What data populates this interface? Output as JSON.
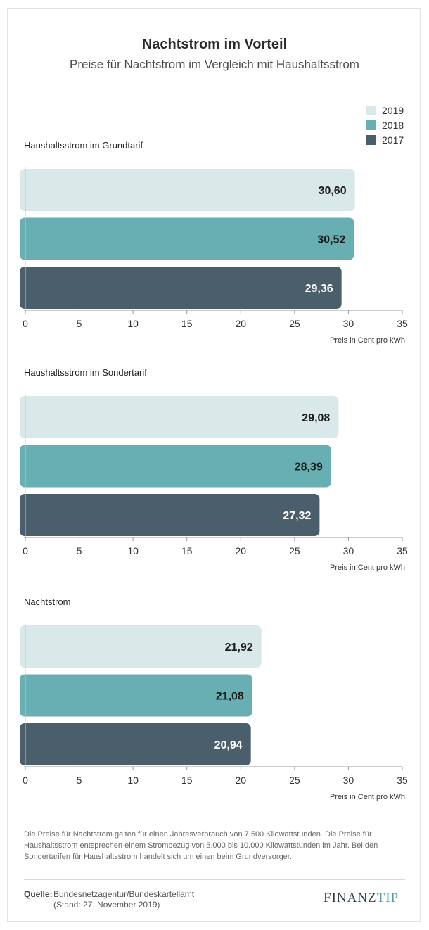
{
  "title": "Nachtstrom im Vorteil",
  "subtitle": "Preise für Nachtstrom im Vergleich mit Haushaltsstrom",
  "legend": [
    {
      "label": "2019",
      "color": "#d9e8e9"
    },
    {
      "label": "2018",
      "color": "#67afb3"
    },
    {
      "label": "2017",
      "color": "#4a5e6b"
    }
  ],
  "chart_data": [
    {
      "type": "bar",
      "title": "Haushaltsstrom im Grundtarif",
      "orientation": "horizontal",
      "series": [
        {
          "name": "2019",
          "value": 30.6,
          "label": "30,60"
        },
        {
          "name": "2018",
          "value": 30.52,
          "label": "30,52"
        },
        {
          "name": "2017",
          "value": 29.36,
          "label": "29,36"
        }
      ],
      "xlabel": "Preis in Cent pro kWh",
      "xlim": [
        0,
        35
      ],
      "ticks": [
        "0",
        "5",
        "10",
        "15",
        "20",
        "25",
        "30",
        "35"
      ]
    },
    {
      "type": "bar",
      "title": "Haushaltsstrom im Sondertarif",
      "orientation": "horizontal",
      "series": [
        {
          "name": "2019",
          "value": 29.08,
          "label": "29,08"
        },
        {
          "name": "2018",
          "value": 28.39,
          "label": "28,39"
        },
        {
          "name": "2017",
          "value": 27.32,
          "label": "27,32"
        }
      ],
      "xlabel": "Preis in Cent pro kWh",
      "xlim": [
        0,
        35
      ],
      "ticks": [
        "0",
        "5",
        "10",
        "15",
        "20",
        "25",
        "30",
        "35"
      ]
    },
    {
      "type": "bar",
      "title": "Nachtstrom",
      "orientation": "horizontal",
      "series": [
        {
          "name": "2019",
          "value": 21.92,
          "label": "21,92"
        },
        {
          "name": "2018",
          "value": 21.08,
          "label": "21,08"
        },
        {
          "name": "2017",
          "value": 20.94,
          "label": "20,94"
        }
      ],
      "xlabel": "Preis in Cent pro kWh",
      "xlim": [
        0,
        35
      ],
      "ticks": [
        "0",
        "5",
        "10",
        "15",
        "20",
        "25",
        "30",
        "35"
      ]
    }
  ],
  "footnote": "Die Preise für Nachtstrom gelten für einen Jahresverbrauch von 7.500 Kilowattstunden. Die Preise für Haushaltsstrom entsprechen einem Strombezug von 5.000 bis 10.000 Kilowattstunden im Jahr. Bei den Sondertarifen für Haushaltsstrom handelt sich um einen beim Grundversorger.",
  "source": {
    "label": "Quelle:",
    "text": "Bundesnetzagentur/Bundeskartellamt",
    "date": "(Stand: 27. November 2019)"
  },
  "logo": {
    "part_a": "FINANZ",
    "part_b": "TIP"
  }
}
